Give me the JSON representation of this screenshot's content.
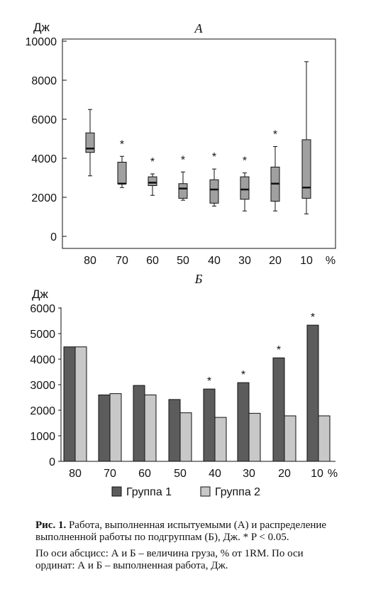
{
  "chart_data": [
    {
      "id": "A",
      "type": "box",
      "title": "А",
      "ylabel": "Дж",
      "xlabel_unit": "%",
      "ylim": [
        0,
        10000
      ],
      "yticks": [
        "0",
        "2000",
        "4000",
        "6000",
        "8000",
        "10000"
      ],
      "ytick_values": [
        0,
        2000,
        4000,
        6000,
        8000,
        10000
      ],
      "categories": [
        "80",
        "70",
        "60",
        "50",
        "40",
        "30",
        "20",
        "10"
      ],
      "boxes": [
        {
          "min": 3100,
          "q1": 4300,
          "median": 4500,
          "q3": 5300,
          "max": 6500,
          "sig": ""
        },
        {
          "min": 2500,
          "q1": 2700,
          "median": 2700,
          "q3": 3800,
          "max": 4100,
          "sig": "*"
        },
        {
          "min": 2100,
          "q1": 2600,
          "median": 2750,
          "q3": 3050,
          "max": 3200,
          "sig": "*"
        },
        {
          "min": 1850,
          "q1": 1950,
          "median": 2450,
          "q3": 2700,
          "max": 3300,
          "sig": "*"
        },
        {
          "min": 1550,
          "q1": 1700,
          "median": 2400,
          "q3": 2900,
          "max": 3450,
          "sig": "*"
        },
        {
          "min": 1300,
          "q1": 1900,
          "median": 2400,
          "q3": 3050,
          "max": 3250,
          "sig": "*"
        },
        {
          "min": 1300,
          "q1": 1800,
          "median": 2700,
          "q3": 3550,
          "max": 4600,
          "sig": "*"
        },
        {
          "min": 1150,
          "q1": 1950,
          "median": 2500,
          "q3": 4950,
          "max": 8950,
          "sig": ""
        }
      ],
      "colors": {
        "box_fill": "#a0a0a0",
        "stroke": "#111111"
      }
    },
    {
      "id": "B",
      "type": "bar",
      "title": "Б",
      "ylabel": "Дж",
      "xlabel_unit": "%",
      "ylim": [
        0,
        6000
      ],
      "yticks": [
        "0",
        "1000",
        "2000",
        "3000",
        "4000",
        "5000",
        "6000"
      ],
      "ytick_values": [
        0,
        1000,
        2000,
        3000,
        4000,
        5000,
        6000
      ],
      "categories": [
        "80",
        "70",
        "60",
        "50",
        "40",
        "30",
        "20",
        "10"
      ],
      "series": [
        {
          "name": "Группа 1",
          "color": "#5c5c5c",
          "values": [
            4480,
            2600,
            2970,
            2420,
            2830,
            3080,
            4050,
            5330
          ]
        },
        {
          "name": "Группа 2",
          "color": "#c8c8c8",
          "values": [
            4480,
            2650,
            2600,
            1900,
            1720,
            1880,
            1780,
            1780
          ]
        }
      ],
      "significance": [
        "",
        "",
        "",
        "",
        "*",
        "*",
        "*",
        "*"
      ],
      "legend_position": "bottom"
    }
  ],
  "caption": {
    "fig_label": "Рис. 1.",
    "text": "Работа, выполненная испытуемыми (А) и распределение выполненной работы по подгруппам (Б), Дж. * P < 0.05.",
    "axis_note": "По оси абсцисс: А и Б – величина груза, % от 1RM. По оси ординат: А и Б – выполненная работа, Дж."
  }
}
